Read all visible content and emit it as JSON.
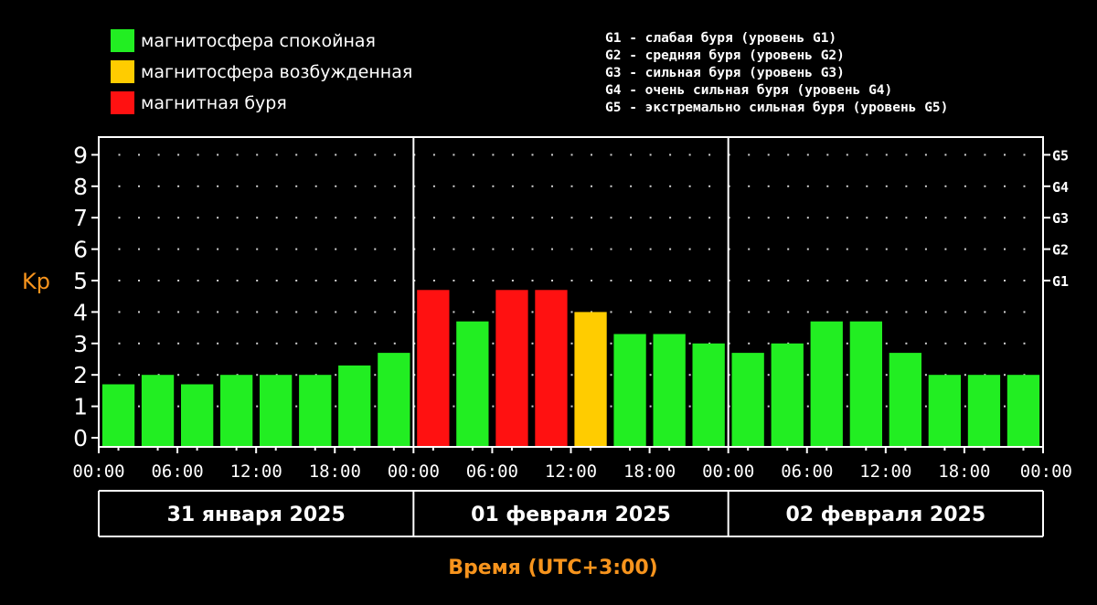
{
  "legend": [
    {
      "label": "магнитосфера спокойная",
      "color": "#22ee22"
    },
    {
      "label": "магнитосфера возбужденная",
      "color": "#ffcc00"
    },
    {
      "label": "магнитная буря",
      "color": "#ff1111"
    }
  ],
  "storm_levels": [
    "G1 - слабая буря (уровень G1)",
    "G2 - средняя буря (уровень G2)",
    "G3 - сильная буря (уровень G3)",
    "G4 - очень сильная буря (уровень G4)",
    "G5 - экстремально сильная буря (уровень G5)"
  ],
  "chart_data": {
    "type": "bar",
    "title": "",
    "ylabel": "Kp",
    "xlabel": "Время (UTC+3:00)",
    "ylim": [
      0,
      9
    ],
    "yticks": [
      "0",
      "1",
      "2",
      "3",
      "4",
      "5",
      "6",
      "7",
      "8",
      "9"
    ],
    "right_ticks": [
      {
        "label": "G1",
        "value": 5
      },
      {
        "label": "G2",
        "value": 6
      },
      {
        "label": "G3",
        "value": 7
      },
      {
        "label": "G4",
        "value": 8
      },
      {
        "label": "G5",
        "value": 9
      }
    ],
    "xtick_labels": [
      "00:00",
      "06:00",
      "12:00",
      "18:00",
      "00:00",
      "06:00",
      "12:00",
      "18:00",
      "00:00",
      "06:00",
      "12:00",
      "18:00",
      "00:00"
    ],
    "days": [
      "31 января 2025",
      "01 февраля 2025",
      "02 февраля 2025"
    ],
    "bars_per_day": 8,
    "values": [
      1.7,
      2.0,
      1.7,
      2.0,
      2.0,
      2.0,
      2.3,
      2.7,
      4.7,
      3.7,
      4.7,
      4.7,
      4.0,
      3.3,
      3.3,
      3.0,
      2.7,
      3.0,
      3.7,
      3.7,
      2.7,
      2.0,
      2.0,
      2.0
    ],
    "levels": [
      "quiet",
      "quiet",
      "quiet",
      "quiet",
      "quiet",
      "quiet",
      "quiet",
      "quiet",
      "storm",
      "quiet",
      "storm",
      "storm",
      "active",
      "quiet",
      "quiet",
      "quiet",
      "quiet",
      "quiet",
      "quiet",
      "quiet",
      "quiet",
      "quiet",
      "quiet",
      "quiet"
    ],
    "level_colors": {
      "quiet": "#22ee22",
      "active": "#ffcc00",
      "storm": "#ff1111"
    },
    "grid": true
  }
}
